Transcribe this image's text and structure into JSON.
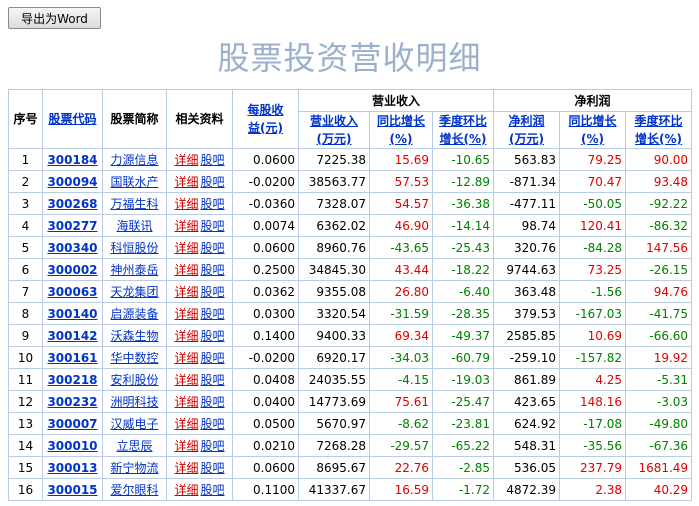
{
  "toolbar": {
    "export_label": "导出为Word"
  },
  "page": {
    "title": "股票投资营收明细"
  },
  "table": {
    "headers": {
      "seq": "序号",
      "code": "股票代码",
      "name": "股票简称",
      "links": "相关资料",
      "eps_line1": "每股收",
      "eps_line2": "益(元)",
      "group_revenue": "营业收入",
      "group_profit": "净利润",
      "rev": "营业收入",
      "rev_unit": "(万元)",
      "rev_yoy": "同比增长",
      "rev_yoy_unit": "(%)",
      "rev_qoq": "季度环比",
      "rev_qoq_unit": "增长(%)",
      "np": "净利润",
      "np_unit": "(万元)",
      "np_yoy": "同比增长",
      "np_yoy_unit": "(%)",
      "np_qoq": "季度环比",
      "np_qoq_unit": "增长(%)"
    },
    "link_detail": "详细",
    "link_forum": "股吧",
    "colors": {
      "positive": "#e00000",
      "negative": "#008000"
    },
    "rows": [
      {
        "seq": "1",
        "code": "300184",
        "name": "力源信息",
        "eps": "0.0600",
        "rev": "7225.38",
        "rev_yoy": "15.69",
        "rev_qoq": "-10.65",
        "np": "563.83",
        "np_yoy": "79.25",
        "np_qoq": "90.00"
      },
      {
        "seq": "2",
        "code": "300094",
        "name": "国联水产",
        "eps": "-0.0200",
        "rev": "38563.77",
        "rev_yoy": "57.53",
        "rev_qoq": "-12.89",
        "np": "-871.34",
        "np_yoy": "70.47",
        "np_qoq": "93.48"
      },
      {
        "seq": "3",
        "code": "300268",
        "name": "万福生科",
        "eps": "-0.0360",
        "rev": "7328.07",
        "rev_yoy": "54.57",
        "rev_qoq": "-36.38",
        "np": "-477.11",
        "np_yoy": "-50.05",
        "np_qoq": "-92.22"
      },
      {
        "seq": "4",
        "code": "300277",
        "name": "海联讯",
        "eps": "0.0074",
        "rev": "6362.02",
        "rev_yoy": "46.90",
        "rev_qoq": "-14.14",
        "np": "98.74",
        "np_yoy": "120.41",
        "np_qoq": "-86.32"
      },
      {
        "seq": "5",
        "code": "300340",
        "name": "科恒股份",
        "eps": "0.0600",
        "rev": "8960.76",
        "rev_yoy": "-43.65",
        "rev_qoq": "-25.43",
        "np": "320.76",
        "np_yoy": "-84.28",
        "np_qoq": "147.56"
      },
      {
        "seq": "6",
        "code": "300002",
        "name": "神州泰岳",
        "eps": "0.2500",
        "rev": "34845.30",
        "rev_yoy": "43.44",
        "rev_qoq": "-18.22",
        "np": "9744.63",
        "np_yoy": "73.25",
        "np_qoq": "-26.15"
      },
      {
        "seq": "7",
        "code": "300063",
        "name": "天龙集团",
        "eps": "0.0362",
        "rev": "9355.08",
        "rev_yoy": "26.80",
        "rev_qoq": "-6.40",
        "np": "363.48",
        "np_yoy": "-1.56",
        "np_qoq": "94.76"
      },
      {
        "seq": "8",
        "code": "300140",
        "name": "启源装备",
        "eps": "0.0300",
        "rev": "3320.54",
        "rev_yoy": "-31.59",
        "rev_qoq": "-28.35",
        "np": "379.53",
        "np_yoy": "-167.03",
        "np_qoq": "-41.75"
      },
      {
        "seq": "9",
        "code": "300142",
        "name": "沃森生物",
        "eps": "0.1400",
        "rev": "9400.33",
        "rev_yoy": "69.34",
        "rev_qoq": "-49.37",
        "np": "2585.85",
        "np_yoy": "10.69",
        "np_qoq": "-66.60"
      },
      {
        "seq": "10",
        "code": "300161",
        "name": "华中数控",
        "eps": "-0.0200",
        "rev": "6920.17",
        "rev_yoy": "-34.03",
        "rev_qoq": "-60.79",
        "np": "-259.10",
        "np_yoy": "-157.82",
        "np_qoq": "19.92"
      },
      {
        "seq": "11",
        "code": "300218",
        "name": "安利股份",
        "eps": "0.0408",
        "rev": "24035.55",
        "rev_yoy": "-4.15",
        "rev_qoq": "-19.03",
        "np": "861.89",
        "np_yoy": "4.25",
        "np_qoq": "-5.31"
      },
      {
        "seq": "12",
        "code": "300232",
        "name": "洲明科技",
        "eps": "0.0400",
        "rev": "14773.69",
        "rev_yoy": "75.61",
        "rev_qoq": "-25.47",
        "np": "423.65",
        "np_yoy": "148.16",
        "np_qoq": "-3.03"
      },
      {
        "seq": "13",
        "code": "300007",
        "name": "汉威电子",
        "eps": "0.0500",
        "rev": "5670.97",
        "rev_yoy": "-8.62",
        "rev_qoq": "-23.81",
        "np": "624.92",
        "np_yoy": "-17.08",
        "np_qoq": "-49.80"
      },
      {
        "seq": "14",
        "code": "300010",
        "name": "立思辰",
        "eps": "0.0210",
        "rev": "7268.28",
        "rev_yoy": "-29.57",
        "rev_qoq": "-65.22",
        "np": "548.31",
        "np_yoy": "-35.56",
        "np_qoq": "-67.36"
      },
      {
        "seq": "15",
        "code": "300013",
        "name": "新宁物流",
        "eps": "0.0600",
        "rev": "8695.67",
        "rev_yoy": "22.76",
        "rev_qoq": "-2.85",
        "np": "536.05",
        "np_yoy": "237.79",
        "np_qoq": "1681.49"
      },
      {
        "seq": "16",
        "code": "300015",
        "name": "爱尔眼科",
        "eps": "0.1100",
        "rev": "41337.67",
        "rev_yoy": "16.59",
        "rev_qoq": "-1.72",
        "np": "4872.39",
        "np_yoy": "2.38",
        "np_qoq": "40.29"
      }
    ]
  }
}
